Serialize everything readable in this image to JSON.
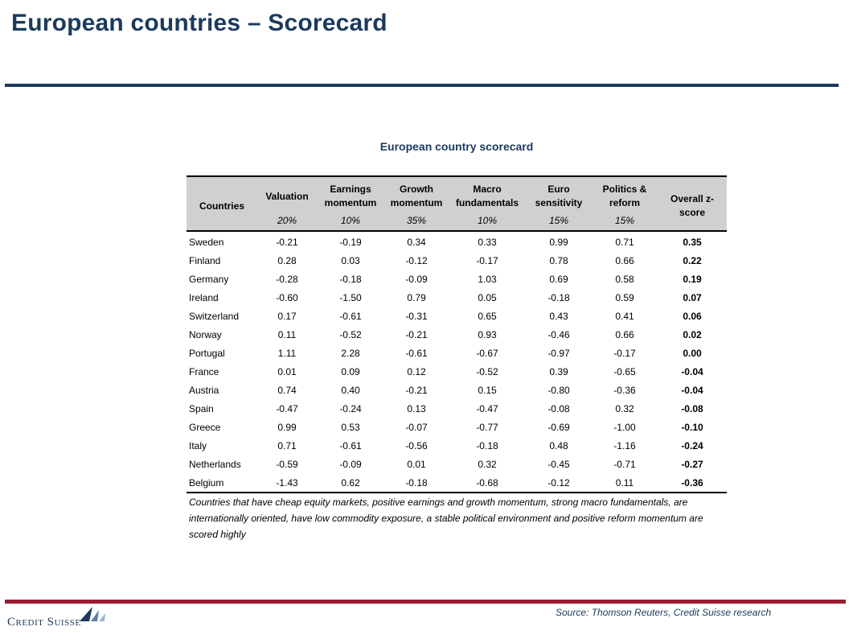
{
  "page": {
    "title": "European countries – Scorecard"
  },
  "table": {
    "caption": "European country scorecard",
    "columns": [
      {
        "label_line1": "Countries",
        "label_line2": "",
        "weight": ""
      },
      {
        "label_line1": "Valuation",
        "label_line2": "",
        "weight": "20%"
      },
      {
        "label_line1": "Earnings",
        "label_line2": "momentum",
        "weight": "10%"
      },
      {
        "label_line1": "Growth",
        "label_line2": "momentum",
        "weight": "35%"
      },
      {
        "label_line1": "Macro",
        "label_line2": "fundamentals",
        "weight": "10%"
      },
      {
        "label_line1": "Euro",
        "label_line2": "sensitivity",
        "weight": "15%"
      },
      {
        "label_line1": "Politics &",
        "label_line2": "reform",
        "weight": "15%"
      },
      {
        "label_line1": "Overall z-",
        "label_line2": "score",
        "weight": ""
      }
    ],
    "rows": [
      {
        "country": "Sweden",
        "values": [
          "-0.21",
          "-0.19",
          "0.34",
          "0.33",
          "0.99",
          "0.71"
        ],
        "overall": "0.35"
      },
      {
        "country": "Finland",
        "values": [
          "0.28",
          "0.03",
          "-0.12",
          "-0.17",
          "0.78",
          "0.66"
        ],
        "overall": "0.22"
      },
      {
        "country": "Germany",
        "values": [
          "-0.28",
          "-0.18",
          "-0.09",
          "1.03",
          "0.69",
          "0.58"
        ],
        "overall": "0.19"
      },
      {
        "country": "Ireland",
        "values": [
          "-0.60",
          "-1.50",
          "0.79",
          "0.05",
          "-0.18",
          "0.59"
        ],
        "overall": "0.07"
      },
      {
        "country": "Switzerland",
        "values": [
          "0.17",
          "-0.61",
          "-0.31",
          "0.65",
          "0.43",
          "0.41"
        ],
        "overall": "0.06"
      },
      {
        "country": "Norway",
        "values": [
          "0.11",
          "-0.52",
          "-0.21",
          "0.93",
          "-0.46",
          "0.66"
        ],
        "overall": "0.02"
      },
      {
        "country": "Portugal",
        "values": [
          "1.11",
          "2.28",
          "-0.61",
          "-0.67",
          "-0.97",
          "-0.17"
        ],
        "overall": "0.00"
      },
      {
        "country": "France",
        "values": [
          "0.01",
          "0.09",
          "0.12",
          "-0.52",
          "0.39",
          "-0.65"
        ],
        "overall": "-0.04"
      },
      {
        "country": "Austria",
        "values": [
          "0.74",
          "0.40",
          "-0.21",
          "0.15",
          "-0.80",
          "-0.36"
        ],
        "overall": "-0.04"
      },
      {
        "country": "Spain",
        "values": [
          "-0.47",
          "-0.24",
          "0.13",
          "-0.47",
          "-0.08",
          "0.32"
        ],
        "overall": "-0.08"
      },
      {
        "country": "Greece",
        "values": [
          "0.99",
          "0.53",
          "-0.07",
          "-0.77",
          "-0.69",
          "-1.00"
        ],
        "overall": "-0.10"
      },
      {
        "country": "Italy",
        "values": [
          "0.71",
          "-0.61",
          "-0.56",
          "-0.18",
          "0.48",
          "-1.16"
        ],
        "overall": "-0.24"
      },
      {
        "country": "Netherlands",
        "values": [
          "-0.59",
          "-0.09",
          "0.01",
          "0.32",
          "-0.45",
          "-0.71"
        ],
        "overall": "-0.27"
      },
      {
        "country": "Belgium",
        "values": [
          "-1.43",
          "0.62",
          "-0.18",
          "-0.68",
          "-0.12",
          "0.11"
        ],
        "overall": "-0.36"
      }
    ],
    "note": "Countries that have cheap equity markets, positive earnings and growth momentum, strong macro fundamentals, are internationally oriented, have low commodity exposure, a stable political environment and positive reform momentum are scored highly"
  },
  "footer": {
    "source": "Source: Thomson Reuters, Credit Suisse research",
    "logo_text": "Credit Suisse",
    "logo_icon": "sails-logo-icon"
  },
  "colors": {
    "title": "#1b3a5c",
    "footer_rule": "#9b1b30",
    "header_bg": "#d0d0d0"
  }
}
